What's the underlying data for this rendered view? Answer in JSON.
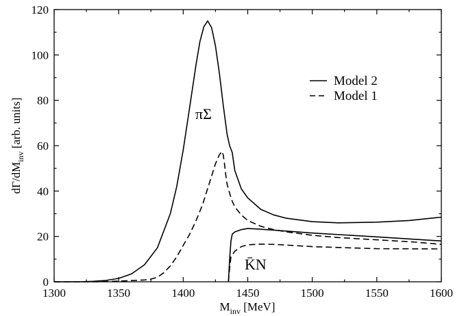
{
  "chart_data": {
    "type": "line",
    "xlabel": {
      "main": "M",
      "sub": "inv",
      "unit": " [MeV]"
    },
    "ylabel": {
      "main": "dΓ/dM",
      "sub": "inv",
      "unit": "  [arb. units]"
    },
    "xlim": [
      1300,
      1600
    ],
    "ylim": [
      0,
      120
    ],
    "xticks": [
      1300,
      1350,
      1400,
      1450,
      1500,
      1550,
      1600
    ],
    "yticks": [
      0,
      20,
      40,
      60,
      80,
      100,
      120
    ],
    "grid": false,
    "legend_position": "top-right",
    "legend": [
      {
        "label": "Model 2",
        "style": "solid"
      },
      {
        "label": "Model 1",
        "style": "dashed"
      }
    ],
    "annotations": {
      "pi_sigma": "πΣ",
      "kbar_n": "K̄N"
    },
    "series": [
      {
        "name": "Model 2",
        "channel": "πΣ",
        "style": "solid",
        "x": [
          1300,
          1320,
          1330,
          1340,
          1350,
          1360,
          1370,
          1380,
          1390,
          1395,
          1400,
          1405,
          1410,
          1413,
          1416,
          1419,
          1422,
          1425,
          1428,
          1431,
          1434,
          1436,
          1437,
          1438,
          1440,
          1445,
          1450,
          1460,
          1470,
          1480,
          1500,
          1520,
          1550,
          1575,
          1600
        ],
        "y": [
          0,
          0,
          0.2,
          0.6,
          1.5,
          3.5,
          7.5,
          15,
          30,
          42,
          58,
          77,
          96,
          106,
          112.5,
          115,
          112,
          104,
          92,
          78,
          65,
          60,
          58.5,
          57,
          49,
          41,
          37,
          32,
          29.5,
          28,
          26.5,
          26,
          26.3,
          27,
          28.5
        ]
      },
      {
        "name": "Model 2",
        "channel": "K̄N",
        "style": "solid",
        "x": [
          1435,
          1436,
          1437,
          1438,
          1440,
          1445,
          1450,
          1460,
          1470,
          1500,
          1550,
          1600
        ],
        "y": [
          0,
          10,
          18,
          21,
          22,
          23,
          23.5,
          23.2,
          22.8,
          21.5,
          19.8,
          18
        ]
      },
      {
        "name": "Model 1",
        "channel": "πΣ",
        "style": "dashed",
        "x": [
          1300,
          1330,
          1350,
          1370,
          1375,
          1380,
          1385,
          1390,
          1395,
          1400,
          1405,
          1410,
          1415,
          1420,
          1425,
          1428,
          1430,
          1431,
          1432,
          1433,
          1434,
          1436,
          1438,
          1440,
          1445,
          1450,
          1460,
          1470,
          1480,
          1500,
          1520,
          1550,
          1580,
          1600
        ],
        "y": [
          0,
          0,
          0.3,
          0.8,
          1.2,
          2,
          4,
          7,
          11,
          16,
          21,
          27,
          34,
          43,
          52,
          56,
          57.5,
          56,
          52,
          47,
          43,
          39,
          35.5,
          33,
          29.5,
          27,
          24.5,
          23,
          22,
          20.5,
          19.5,
          18.5,
          17.5,
          16.5
        ]
      },
      {
        "name": "Model 1",
        "channel": "K̄N",
        "style": "dashed",
        "x": [
          1435,
          1436,
          1437,
          1440,
          1445,
          1450,
          1460,
          1470,
          1480,
          1500,
          1550,
          1600
        ],
        "y": [
          0,
          6,
          11,
          13.5,
          15.5,
          16.3,
          16.6,
          16.5,
          16.2,
          15.5,
          14.6,
          14.5
        ]
      }
    ]
  }
}
